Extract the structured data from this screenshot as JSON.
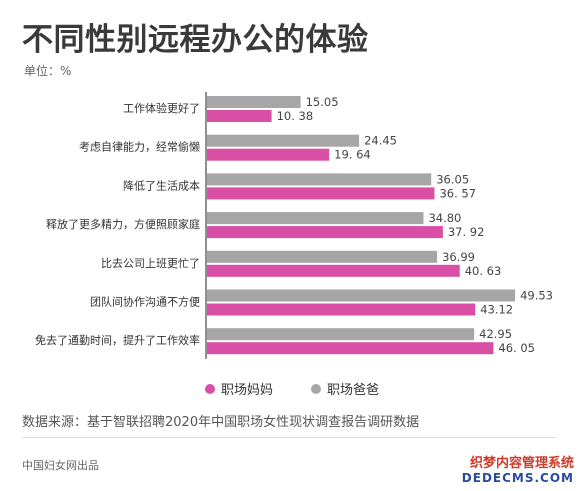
{
  "header": {
    "title": "不同性别远程办公的体验",
    "unit": "单位：%"
  },
  "source": "数据来源：基于智联招聘2020年中国职场女性现状调查报告调研数据",
  "footer": "中国妇女网出品",
  "watermark": {
    "line1": "织梦内容管理系统",
    "line2": "DEDECMS.COM"
  },
  "chart_data": {
    "type": "bar",
    "orientation": "horizontal",
    "title": "不同性别远程办公的体验",
    "unit": "单位：%",
    "categories": [
      "工作体验更好了",
      "考虑自律能力，经常偷懒",
      "降低了生活成本",
      "释放了更多精力，方便照顾家庭",
      "比去公司上班更忙了",
      "团队间协作沟通不方便",
      "免去了通勤时间，提升了工作效率"
    ],
    "series": [
      {
        "name": "职场爸爸",
        "color": "#a6a6a6",
        "values": [
          15.05,
          24.45,
          36.05,
          34.8,
          36.99,
          49.53,
          42.95
        ],
        "labels": [
          "15.05",
          "24.45",
          "36.05",
          "34.80",
          "36.99",
          "49.53",
          "42.95"
        ]
      },
      {
        "name": "职场妈妈",
        "color": "#d94fa5",
        "values": [
          10.38,
          19.64,
          36.57,
          37.92,
          40.63,
          43.12,
          46.05
        ],
        "labels": [
          "10. 38",
          "19. 64",
          "36. 57",
          "37. 92",
          "40. 63",
          "43.12",
          "46. 05"
        ]
      }
    ],
    "legend": {
      "position": "bottom-left",
      "order": [
        "职场妈妈",
        "职场爸爸"
      ]
    },
    "xlim": [
      0,
      50
    ],
    "grid": false
  }
}
